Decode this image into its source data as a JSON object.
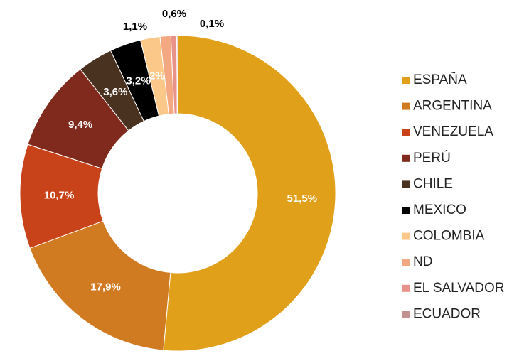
{
  "chart_data": {
    "type": "donut",
    "categories": [
      "ESPAÑA",
      "ARGENTINA",
      "VENEZUELA",
      "PERÚ",
      "CHILE",
      "MEXICO",
      "COLOMBIA",
      "ND",
      "EL SALVADOR",
      "ECUADOR"
    ],
    "values": [
      51.5,
      17.9,
      10.7,
      9.4,
      3.6,
      3.2,
      2,
      1.1,
      0.6,
      0.1
    ],
    "value_labels": [
      "51,5%",
      "17,9%",
      "10,7%",
      "9,4%",
      "3,6%",
      "3,2%",
      "2%",
      "1,1%",
      "0,6%",
      "0,1%"
    ],
    "colors": [
      "#e0a01a",
      "#d07a22",
      "#c8421a",
      "#7f2a1c",
      "#4a3220",
      "#000000",
      "#fcc88a",
      "#f4a882",
      "#e8928a",
      "#c49090"
    ],
    "legend": "right"
  }
}
